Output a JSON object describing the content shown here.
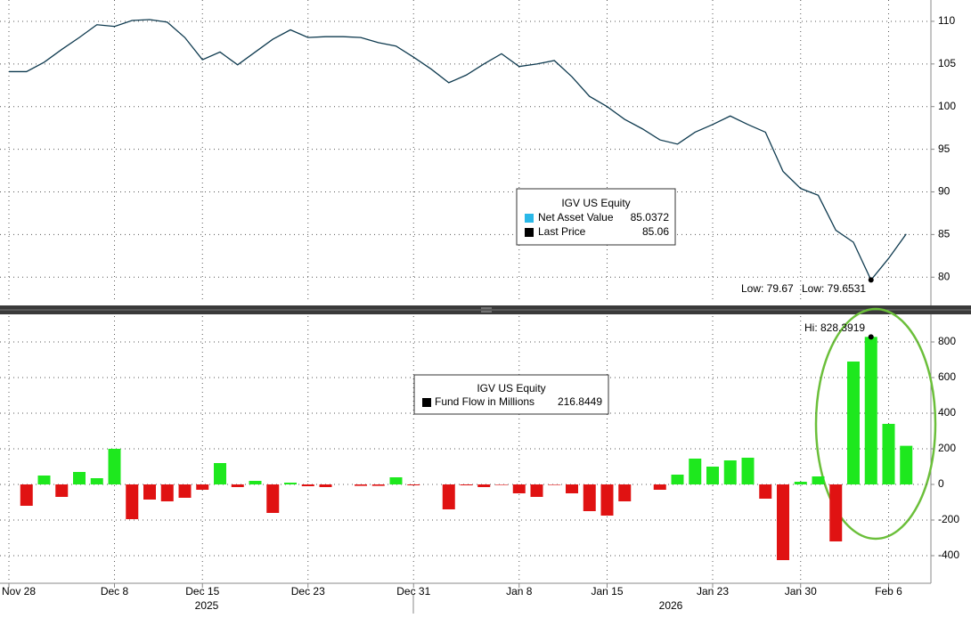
{
  "chart_data": [
    {
      "type": "line",
      "series": [
        {
          "name": "Last Price",
          "color": "#0e3a4f",
          "values": [
            104.1,
            104.1,
            105.2,
            106.7,
            108.1,
            109.6,
            109.4,
            110.1,
            110.2,
            109.9,
            108.1,
            105.5,
            106.4,
            104.9,
            106.4,
            107.9,
            109.0,
            108.1,
            108.2,
            108.2,
            108.1,
            107.5,
            107.1,
            105.8,
            104.4,
            102.8,
            103.7,
            105.0,
            106.2,
            104.7,
            105.0,
            105.4,
            103.5,
            101.2,
            100.0,
            98.5,
            97.4,
            96.1,
            95.6,
            97.0,
            97.9,
            98.9,
            97.9,
            97.0,
            92.4,
            90.4,
            89.6,
            85.5,
            84.1,
            79.67,
            82.2,
            85.06
          ]
        }
      ],
      "legend_title": "IGV US Equity",
      "legend": [
        {
          "name": "Net Asset Value",
          "color": "#2ab8e8",
          "value": 85.0372
        },
        {
          "name": "Last Price",
          "color": "#000000",
          "value": 85.06
        }
      ],
      "annotations": [
        {
          "text": "Low: 79.67",
          "color": "#000000"
        },
        {
          "text": "Low: 79.6531",
          "color": "#2ab8e8"
        }
      ],
      "ylim": [
        77,
        112.5
      ],
      "yticks": [
        80,
        85,
        90,
        95,
        100,
        105,
        110
      ],
      "grid": true
    },
    {
      "type": "bar",
      "categories": [
        "Nov 28",
        null,
        null,
        null,
        null,
        null,
        "Dec 8",
        null,
        null,
        null,
        null,
        "Dec 15",
        null,
        null,
        null,
        null,
        null,
        "Dec 23",
        null,
        null,
        null,
        null,
        null,
        "Dec 31",
        null,
        null,
        null,
        null,
        null,
        "Jan 8",
        null,
        null,
        null,
        null,
        "Jan 15",
        null,
        null,
        null,
        null,
        null,
        "Jan 23",
        null,
        null,
        null,
        null,
        "Jan 30",
        null,
        null,
        null,
        null,
        "Feb 6",
        null
      ],
      "years": [
        "2025",
        "2026"
      ],
      "series": [
        {
          "name": "Fund Flow in Millions",
          "color_positive": "#1ee81e",
          "color_negative": "#e01212",
          "values": [
            null,
            -120,
            50,
            -70,
            70,
            35,
            200,
            -195,
            -85,
            -95,
            -75,
            -30,
            120,
            -15,
            20,
            -160,
            10,
            -10,
            -15,
            null,
            -8,
            -8,
            40,
            -5,
            null,
            -140,
            -5,
            -15,
            -3,
            -50,
            -70,
            -3,
            -50,
            -150,
            -175,
            -95,
            null,
            -30,
            55,
            145,
            100,
            135,
            150,
            -80,
            -425,
            15,
            45,
            -320,
            690,
            828.3919,
            340,
            216.8449
          ]
        }
      ],
      "legend_title": "IGV US Equity",
      "legend_value": 216.8449,
      "annotations": [
        {
          "text": "Hi: 828.3919"
        }
      ],
      "ylim": [
        -555,
        945
      ],
      "yticks": [
        -400,
        -200,
        0,
        200,
        400,
        600,
        800
      ],
      "grid": true
    }
  ]
}
